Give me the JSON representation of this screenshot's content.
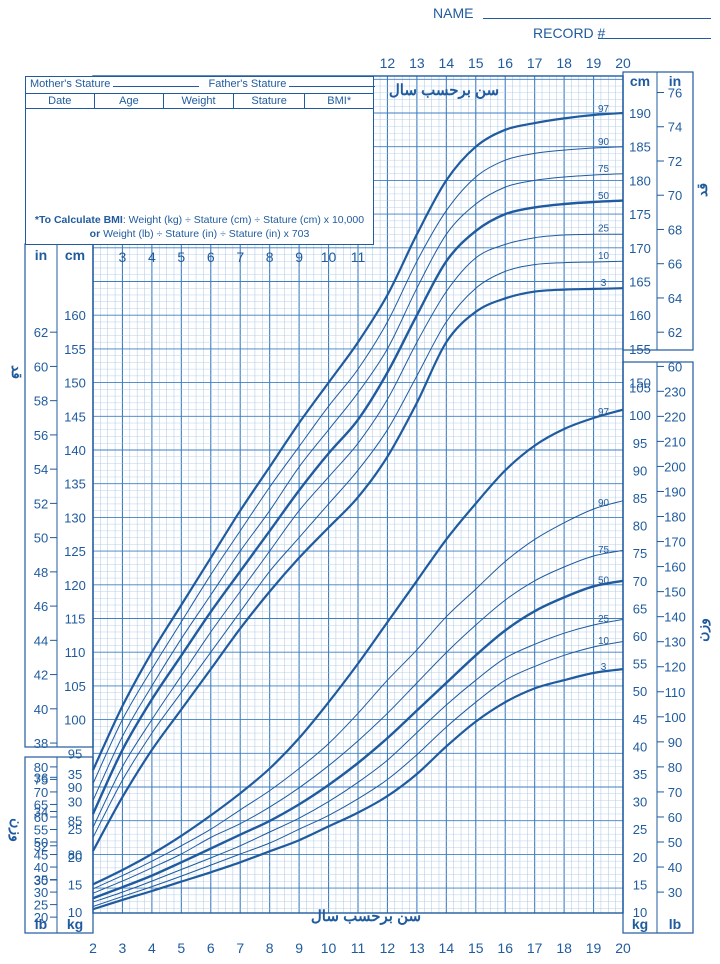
{
  "header": {
    "name_label": "NAME",
    "record_label": "RECORD #"
  },
  "record_table": {
    "mother_label": "Mother's Stature",
    "father_label": "Father's Stature",
    "columns": [
      "Date",
      "Age",
      "Weight",
      "Stature",
      "BMI*"
    ],
    "bmi_note_bold": "*To Calculate BMI",
    "bmi_note_1": ": Weight (kg) ÷ Stature (cm) ÷ Stature (cm) x 10,000",
    "bmi_note_2_bold": "or",
    "bmi_note_2": " Weight (lb) ÷ Stature (in) ÷ Stature (in) x 703"
  },
  "labels": {
    "age_title_top": "سن برحسب سال",
    "age_title_bottom": "سن برحسب سال",
    "stature_side_left": "قد",
    "stature_side_right": "قد",
    "weight_side_left": "وزن",
    "weight_side_right": "وزن",
    "unit_cm": "cm",
    "unit_in": "in",
    "unit_kg": "kg",
    "unit_lb": "lb"
  },
  "colors": {
    "ink": "#1f5b9e",
    "grid_minor": "#a9c6e6",
    "grid_major": "#3f7fc4",
    "background": "#ffffff"
  },
  "chart_data": {
    "type": "line",
    "x_ticks": [
      2,
      3,
      4,
      5,
      6,
      7,
      8,
      9,
      10,
      11,
      12,
      13,
      14,
      15,
      16,
      17,
      18,
      19,
      20
    ],
    "x_ticks_top": [
      12,
      13,
      14,
      15,
      16,
      17,
      18,
      19,
      20
    ],
    "x_ticks_upper_left": [
      3,
      4,
      5,
      6,
      7,
      8,
      9,
      10,
      11
    ],
    "xlim": [
      2,
      20
    ],
    "stature": {
      "ylabel_cm_ticks": [
        80,
        85,
        90,
        95,
        100,
        105,
        110,
        115,
        120,
        125,
        130,
        135,
        140,
        145,
        150,
        155,
        160,
        165,
        170,
        175,
        180,
        185,
        190
      ],
      "left_in_ticks": [
        30,
        32,
        34,
        36,
        38,
        40,
        42,
        44,
        46,
        48,
        50,
        52,
        54,
        56,
        58,
        60,
        62
      ],
      "right_in_ticks": [
        60,
        62,
        64,
        66,
        68,
        70,
        72,
        74,
        76
      ],
      "ages": [
        2,
        3,
        4,
        5,
        6,
        7,
        8,
        9,
        10,
        11,
        12,
        13,
        14,
        15,
        16,
        17,
        18,
        19,
        20
      ],
      "series": [
        {
          "name": "3",
          "values": [
            80.5,
            88.5,
            95.5,
            101.5,
            107.5,
            113.5,
            119,
            124,
            128.5,
            133,
            139,
            147,
            156,
            160.5,
            162.5,
            163.5,
            163.8,
            163.9,
            164
          ]
        },
        {
          "name": "10",
          "values": [
            82.5,
            91,
            98,
            104,
            110,
            116,
            122,
            127,
            132,
            137,
            143,
            151,
            159,
            164,
            166.5,
            167.5,
            167.8,
            167.9,
            168
          ]
        },
        {
          "name": "25",
          "values": [
            84,
            93,
            100,
            106.5,
            113,
            119,
            125,
            131,
            136,
            141,
            147.5,
            156,
            163.5,
            168.5,
            170.5,
            171.5,
            171.9,
            172,
            172
          ]
        },
        {
          "name": "50",
          "values": [
            86,
            95.5,
            103,
            109.5,
            116,
            122,
            128,
            134,
            139.5,
            144.5,
            151.5,
            160,
            168,
            172.5,
            175,
            176,
            176.5,
            176.8,
            177
          ]
        },
        {
          "name": "75",
          "values": [
            88,
            97.5,
            105,
            112,
            118.5,
            125,
            131,
            137.5,
            143,
            148.5,
            155,
            164,
            172,
            176.5,
            179,
            180,
            180.5,
            180.8,
            181
          ]
        },
        {
          "name": "90",
          "values": [
            90.5,
            100,
            107.5,
            114.5,
            121.5,
            128,
            134.5,
            140.5,
            146.5,
            152,
            159,
            168,
            175.5,
            180.5,
            183,
            184,
            184.5,
            184.8,
            185
          ]
        },
        {
          "name": "97",
          "values": [
            92.5,
            102,
            110,
            117,
            124,
            131,
            137.5,
            144,
            150,
            156,
            163,
            172,
            180,
            185,
            187.5,
            188.5,
            189.2,
            189.7,
            190
          ]
        }
      ]
    },
    "weight": {
      "kg_ticks_lower": [
        10,
        15,
        20,
        25,
        30,
        35
      ],
      "kg_ticks_right": [
        10,
        15,
        20,
        25,
        30,
        35,
        40,
        45,
        50,
        55,
        60,
        65,
        70,
        75,
        80,
        85,
        90,
        95,
        100,
        105
      ],
      "left_lb_ticks": [
        20,
        25,
        30,
        35,
        40,
        45,
        50,
        55,
        60,
        65,
        70,
        75,
        80
      ],
      "right_lb_ticks": [
        30,
        40,
        50,
        60,
        70,
        80,
        90,
        100,
        110,
        120,
        130,
        140,
        150,
        160,
        170,
        180,
        190,
        200,
        210,
        220,
        230
      ],
      "ages": [
        2,
        3,
        4,
        5,
        6,
        7,
        8,
        9,
        10,
        11,
        12,
        13,
        14,
        15,
        16,
        17,
        18,
        19,
        20
      ],
      "series": [
        {
          "name": "3",
          "values": [
            10.5,
            12.2,
            13.8,
            15.5,
            17.2,
            19,
            21,
            23,
            25.5,
            28,
            31,
            35,
            40,
            44.5,
            48,
            50.5,
            52,
            53.3,
            54
          ]
        },
        {
          "name": "10",
          "values": [
            11,
            12.8,
            14.6,
            16.5,
            18.5,
            20.5,
            22.5,
            25,
            27.5,
            30.5,
            34,
            38.5,
            43.5,
            48,
            52,
            54.5,
            56.5,
            58,
            59
          ]
        },
        {
          "name": "25",
          "values": [
            11.8,
            13.6,
            15.6,
            17.7,
            19.8,
            22,
            24.5,
            27,
            30,
            33.5,
            37.5,
            42.5,
            47.5,
            52,
            56,
            58.5,
            60.5,
            62,
            63
          ]
        },
        {
          "name": "50",
          "values": [
            12.5,
            14.5,
            16.6,
            19,
            21.5,
            24,
            26.5,
            29.5,
            33,
            37,
            41.5,
            46.5,
            51.5,
            56.5,
            61,
            64.5,
            67,
            69,
            70
          ]
        },
        {
          "name": "75",
          "values": [
            13.4,
            15.6,
            18,
            20.5,
            23.5,
            26,
            29,
            32.5,
            36.5,
            41,
            46,
            51.5,
            57,
            62,
            66.5,
            70,
            72.5,
            74.5,
            75.5
          ]
        },
        {
          "name": "90",
          "values": [
            14.2,
            16.6,
            19.2,
            22,
            25,
            28.5,
            32,
            36,
            40.5,
            46,
            52,
            57.5,
            63.5,
            68.5,
            73.5,
            77.5,
            80.5,
            83,
            84.5
          ]
        },
        {
          "name": "97",
          "values": [
            15,
            17.6,
            20.5,
            23.8,
            27.5,
            31.5,
            36,
            41.5,
            48,
            55,
            62.5,
            70,
            77.5,
            84,
            90,
            94.5,
            97.5,
            99.5,
            101
          ]
        }
      ]
    }
  }
}
